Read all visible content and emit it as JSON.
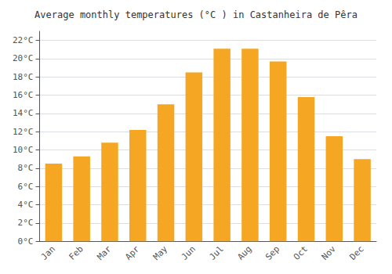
{
  "chart_data": {
    "type": "bar",
    "title": "Average monthly temperatures (°C ) in Castanheira de Pêra",
    "categories": [
      "Jan",
      "Feb",
      "Mar",
      "Apr",
      "May",
      "Jun",
      "Jul",
      "Aug",
      "Sep",
      "Oct",
      "Nov",
      "Dec"
    ],
    "values": [
      8.5,
      9.3,
      10.8,
      12.2,
      15.0,
      18.5,
      21.1,
      21.1,
      19.7,
      15.8,
      11.5,
      9.0
    ],
    "color": "#F5A623",
    "ylim": [
      0,
      23
    ],
    "yticks": [
      {
        "value": 0,
        "label": "0°C"
      },
      {
        "value": 2,
        "label": "2°C"
      },
      {
        "value": 4,
        "label": "4°C"
      },
      {
        "value": 6,
        "label": "6°C"
      },
      {
        "value": 8,
        "label": "8°C"
      },
      {
        "value": 10,
        "label": "10°C"
      },
      {
        "value": 12,
        "label": "12°C"
      },
      {
        "value": 14,
        "label": "14°C"
      },
      {
        "value": 16,
        "label": "16°C"
      },
      {
        "value": 18,
        "label": "18°C"
      },
      {
        "value": 20,
        "label": "20°C"
      },
      {
        "value": 22,
        "label": "22°C"
      }
    ],
    "grid": true
  }
}
